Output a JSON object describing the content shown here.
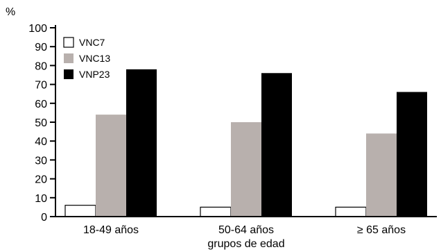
{
  "chart_data": {
    "type": "bar",
    "title": "",
    "ylabel": "%",
    "xlabel": "grupos de edad",
    "ylim": [
      0,
      100
    ],
    "yticks": [
      0,
      10,
      20,
      30,
      40,
      50,
      60,
      70,
      80,
      90,
      100
    ],
    "categories": [
      "18-49 años",
      "50-64 años",
      "≥ 65 años"
    ],
    "series": [
      {
        "name": "VNC7",
        "color": "#ffffff",
        "values": [
          6,
          5,
          5
        ]
      },
      {
        "name": "VNC13",
        "color": "#b8b0ad",
        "values": [
          54,
          50,
          44
        ]
      },
      {
        "name": "VNP23",
        "color": "#000000",
        "values": [
          78,
          76,
          66
        ]
      }
    ],
    "legend_position": "top-left",
    "grid": false
  }
}
